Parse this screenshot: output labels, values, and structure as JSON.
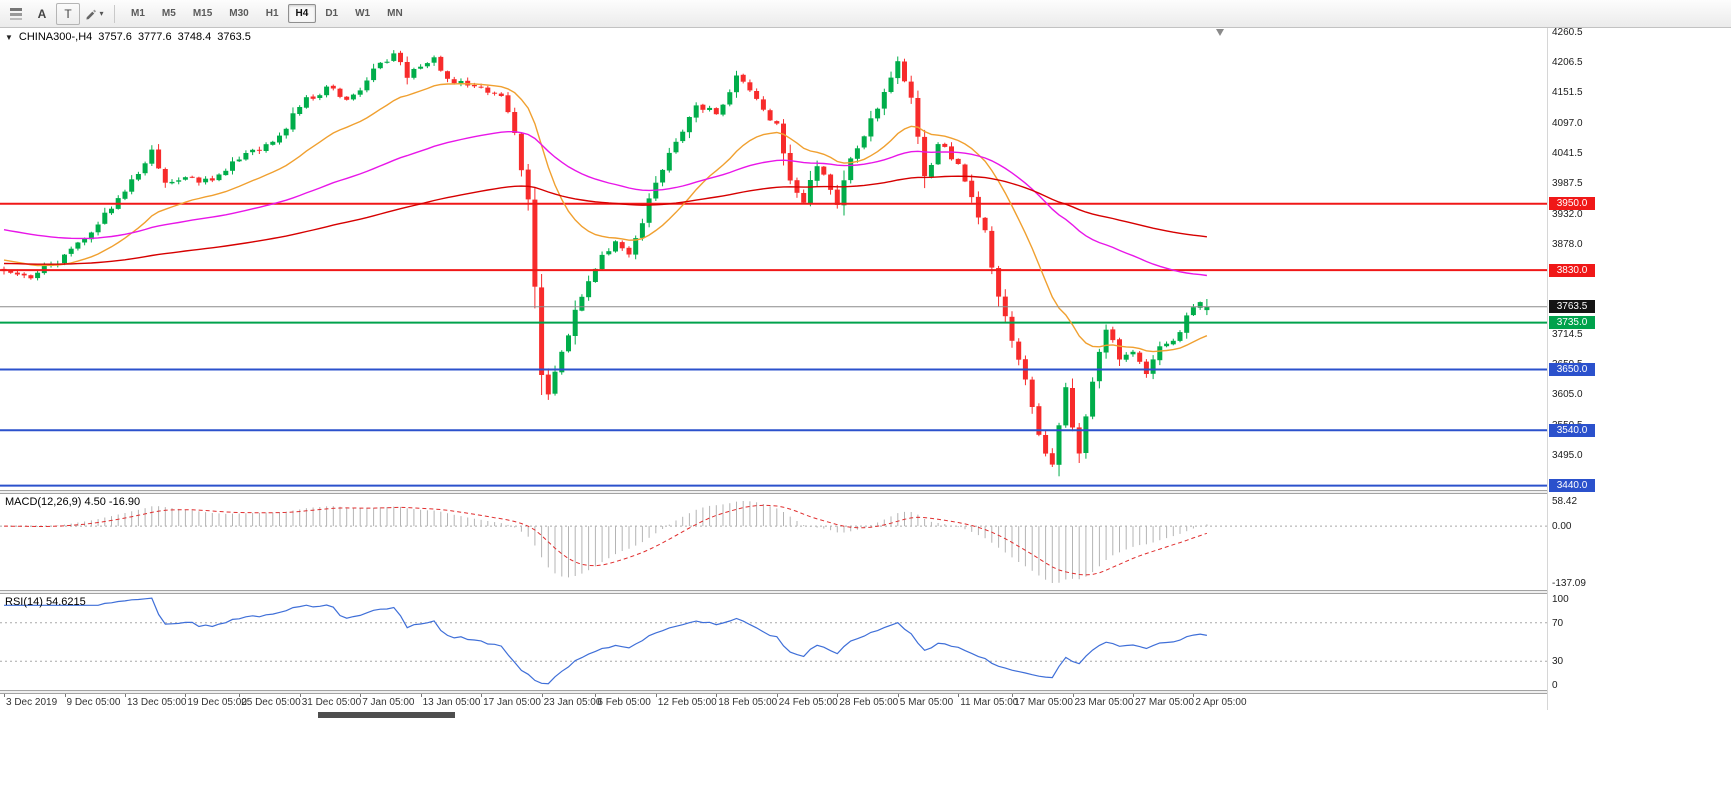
{
  "toolbar": {
    "cursor_label": "A",
    "text_label": "T",
    "draw_caret": "▾",
    "timeframes": [
      "M1",
      "M5",
      "M15",
      "M30",
      "H1",
      "H4",
      "D1",
      "W1",
      "MN"
    ],
    "active_timeframe": "H4"
  },
  "chart": {
    "header_icon": "▼",
    "symbol_header": "CHINA300-,H4",
    "ohlc": {
      "open": "3757.6",
      "high": "3777.6",
      "low": "3748.4",
      "close": "3763.5"
    },
    "price_scale": {
      "max": 4268,
      "min": 3432,
      "ticks": [
        4260.5,
        4206.5,
        4151.5,
        4097.0,
        4041.5,
        3987.5,
        3932.0,
        3878.0,
        3823.5,
        3769.0,
        3714.5,
        3659.5,
        3605.0,
        3550.5,
        3495.0,
        3440.5
      ]
    },
    "levels": [
      {
        "price": 3950.0,
        "label": "3950.0",
        "color": "#f01818",
        "width": 2
      },
      {
        "price": 3830.0,
        "label": "3830.0",
        "color": "#f01818",
        "width": 2
      },
      {
        "price": 3735.0,
        "label": "3735.0",
        "color": "#00a24c",
        "width": 2
      },
      {
        "price": 3650.0,
        "label": "3650.0",
        "color": "#2b51cc",
        "width": 2
      },
      {
        "price": 3540.0,
        "label": "3540.0",
        "color": "#2b51cc",
        "width": 2
      },
      {
        "price": 3440.0,
        "label": "3440.0",
        "color": "#2b51cc",
        "width": 2
      }
    ],
    "current_price": {
      "value": 3763.5,
      "label": "3763.5",
      "line_color": "#8c8c8c",
      "badge_color": "#141414"
    }
  },
  "macd": {
    "label": "MACD(12,26,9) 4.50 -16.90",
    "scale_labels": [
      "58.42",
      "0.00",
      "-137.09"
    ],
    "histogram_color": "#b4b4b4",
    "signal_color": "#e02e2e"
  },
  "rsi": {
    "label": "RSI(14) 54.6215",
    "scale_labels": [
      "100",
      "70",
      "30",
      "0"
    ],
    "scale_values": [
      100,
      70,
      30,
      0
    ],
    "level_lines": [
      70,
      30
    ],
    "line_color": "#3f6fd8"
  },
  "time_axis": {
    "labels": [
      "3 Dec 2019",
      "9 Dec 05:00",
      "13 Dec 05:00",
      "19 Dec 05:00",
      "25 Dec 05:00",
      "31 Dec 05:00",
      "7 Jan 05:00",
      "13 Jan 05:00",
      "17 Jan 05:00",
      "23 Jan 05:00",
      "6 Feb 05:00",
      "12 Feb 05:00",
      "18 Feb 05:00",
      "24 Feb 05:00",
      "28 Feb 05:00",
      "5 Mar 05:00",
      "11 Mar 05:00",
      "17 Mar 05:00",
      "23 Mar 05:00",
      "27 Mar 05:00",
      "2 Apr 05:00"
    ],
    "bar_indices": [
      0,
      9,
      18,
      27,
      35,
      44,
      53,
      62,
      71,
      80,
      88,
      97,
      106,
      115,
      124,
      133,
      142,
      150,
      159,
      168,
      177
    ]
  },
  "chart_data": {
    "type": "candlestick",
    "symbol": "CHINA300-",
    "timeframe": "H4",
    "bar_count": 180,
    "bar_spacing": 6.72,
    "candle_width": 5,
    "colors": {
      "up": "#00ad4a",
      "down": "#f72b2b"
    },
    "price_path": [
      [
        0,
        3828
      ],
      [
        4,
        3815
      ],
      [
        9,
        3858
      ],
      [
        13,
        3898
      ],
      [
        18,
        3972
      ],
      [
        22,
        4048
      ],
      [
        24,
        3988
      ],
      [
        27,
        3998
      ],
      [
        31,
        3992
      ],
      [
        35,
        4030
      ],
      [
        40,
        4062
      ],
      [
        44,
        4125
      ],
      [
        48,
        4162
      ],
      [
        51,
        4138
      ],
      [
        53,
        4155
      ],
      [
        56,
        4205
      ],
      [
        58,
        4222
      ],
      [
        60,
        4178
      ],
      [
        62,
        4198
      ],
      [
        64,
        4215
      ],
      [
        67,
        4168
      ],
      [
        71,
        4160
      ],
      [
        74,
        4145
      ],
      [
        76,
        4078
      ],
      [
        78,
        3958
      ],
      [
        79,
        3800
      ],
      [
        80,
        3640
      ],
      [
        81,
        3605
      ],
      [
        83,
        3682
      ],
      [
        85,
        3758
      ],
      [
        88,
        3832
      ],
      [
        91,
        3882
      ],
      [
        93,
        3858
      ],
      [
        97,
        3988
      ],
      [
        100,
        4062
      ],
      [
        103,
        4128
      ],
      [
        106,
        4112
      ],
      [
        109,
        4182
      ],
      [
        111,
        4155
      ],
      [
        113,
        4120
      ],
      [
        115,
        4095
      ],
      [
        117,
        3992
      ],
      [
        119,
        3952
      ],
      [
        121,
        4018
      ],
      [
        123,
        3975
      ],
      [
        124,
        3948
      ],
      [
        126,
        4032
      ],
      [
        128,
        4072
      ],
      [
        130,
        4122
      ],
      [
        133,
        4208
      ],
      [
        135,
        4142
      ],
      [
        137,
        4000
      ],
      [
        139,
        4058
      ],
      [
        142,
        4022
      ],
      [
        144,
        3962
      ],
      [
        146,
        3902
      ],
      [
        148,
        3782
      ],
      [
        150,
        3702
      ],
      [
        152,
        3632
      ],
      [
        154,
        3532
      ],
      [
        156,
        3478
      ],
      [
        158,
        3618
      ],
      [
        159,
        3545
      ],
      [
        160,
        3498
      ],
      [
        162,
        3628
      ],
      [
        164,
        3722
      ],
      [
        166,
        3668
      ],
      [
        168,
        3682
      ],
      [
        170,
        3642
      ],
      [
        172,
        3692
      ],
      [
        174,
        3702
      ],
      [
        176,
        3748
      ],
      [
        178,
        3772
      ],
      [
        179,
        3763.5
      ]
    ],
    "last_bar": {
      "open": 3757.6,
      "high": 3777.6,
      "low": 3748.4,
      "close": 3763.5
    },
    "moving_averages": [
      {
        "period": 22,
        "seed": 3850,
        "color": "#f0a030"
      },
      {
        "period": 75,
        "seed": 3905,
        "color": "#e816e8"
      },
      {
        "period": 170,
        "seed": 3842,
        "color": "#d60000"
      }
    ],
    "macd_params": {
      "fast": 12,
      "slow": 26,
      "signal": 9
    },
    "rsi_period": 14,
    "noise_seed": 11,
    "noise_amplitude": 9
  }
}
